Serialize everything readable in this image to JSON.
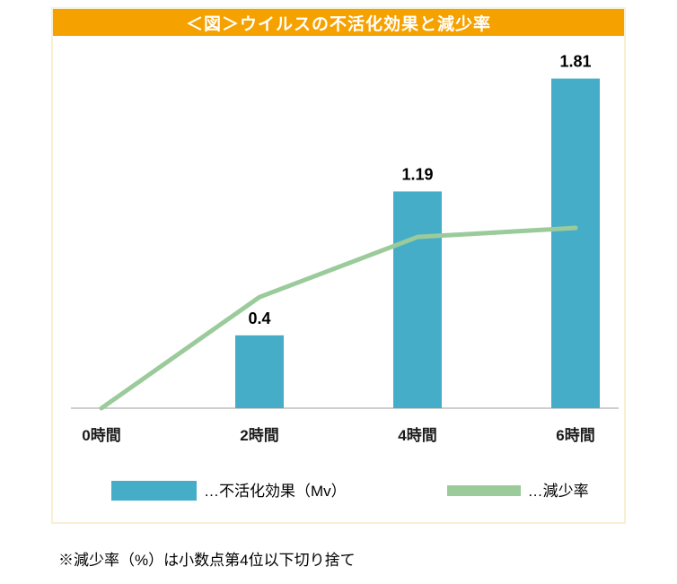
{
  "chart": {
    "title": "＜図＞ウイルスの不活化効果と減少率",
    "footnote": "※減少率（%）は小数点第4位以下切り捨て"
  },
  "legend": {
    "items": [
      {
        "label": "…不活化効果（Mv）",
        "color": "#45ADC8",
        "type": "bar"
      },
      {
        "label": "…減少率",
        "color": "#9BCB9B",
        "type": "line"
      }
    ]
  },
  "chart_data": {
    "type": "bar",
    "title": "＜図＞ウイルスの不活化効果と減少率",
    "categories": [
      "0時間",
      "2時間",
      "4時間",
      "6時間"
    ],
    "series": [
      {
        "name": "不活化効果（Mv）",
        "type": "bar",
        "color": "#45ADC8",
        "values": [
          0,
          0.4,
          1.19,
          1.81
        ],
        "data_labels": [
          "",
          "0.4",
          "1.19",
          "1.81"
        ]
      },
      {
        "name": "減少率",
        "type": "line",
        "color": "#9BCB9B",
        "axis": "secondary-unlabeled",
        "values": [
          0,
          0.61,
          0.94,
          0.99
        ]
      }
    ],
    "xlabel": "",
    "ylabel": "",
    "ylim": [
      0,
      2.0
    ],
    "grid": false,
    "legend_position": "bottom",
    "colors": {
      "banner": "#F5A100",
      "bar": "#45ADC8",
      "line": "#9BCB9B",
      "axis": "#BFBFBF",
      "card_border": "#F9EFD2"
    }
  }
}
